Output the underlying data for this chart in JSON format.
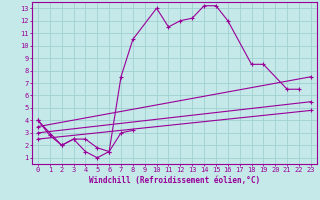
{
  "xlabel": "Windchill (Refroidissement éolien,°C)",
  "background_color": "#c5e8e8",
  "line_color": "#990099",
  "grid_color": "#a0d0d0",
  "xlim": [
    -0.5,
    23.5
  ],
  "ylim": [
    0.5,
    13.5
  ],
  "xticks": [
    0,
    1,
    2,
    3,
    4,
    5,
    6,
    7,
    8,
    9,
    10,
    11,
    12,
    13,
    14,
    15,
    16,
    17,
    18,
    19,
    20,
    21,
    22,
    23
  ],
  "yticks": [
    1,
    2,
    3,
    4,
    5,
    6,
    7,
    8,
    9,
    10,
    11,
    12,
    13
  ],
  "series_data": {
    "curve1_x": [
      0,
      1,
      2,
      3,
      4,
      5,
      6,
      7,
      8,
      10,
      11,
      12,
      13,
      14,
      15,
      16,
      18,
      19,
      21,
      22
    ],
    "curve1_y": [
      4.0,
      2.8,
      2.0,
      2.5,
      1.5,
      1.0,
      1.5,
      7.5,
      10.5,
      13.0,
      11.5,
      12.0,
      12.2,
      13.2,
      13.2,
      12.0,
      8.5,
      8.5,
      6.5,
      6.5
    ],
    "curve2_x": [
      0,
      2,
      3,
      4,
      5,
      6,
      7,
      8
    ],
    "curve2_y": [
      4.0,
      2.0,
      2.5,
      2.5,
      1.8,
      1.5,
      3.0,
      3.2
    ],
    "line1_x": [
      0,
      23
    ],
    "line1_y": [
      3.5,
      7.5
    ],
    "line2_x": [
      0,
      23
    ],
    "line2_y": [
      3.0,
      5.5
    ],
    "line3_x": [
      0,
      23
    ],
    "line3_y": [
      2.5,
      4.8
    ]
  },
  "tick_fontsize": 5.0,
  "xlabel_fontsize": 5.5,
  "xlabel_fontweight": "bold"
}
